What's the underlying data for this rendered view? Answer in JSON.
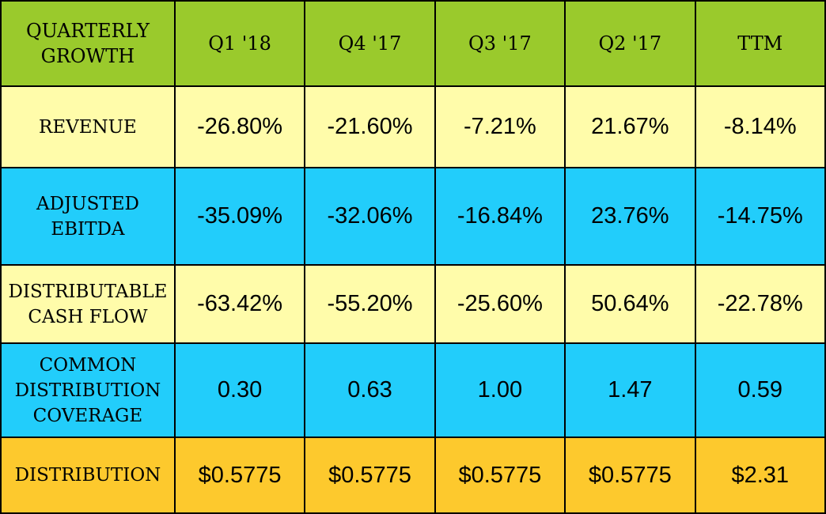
{
  "colors": {
    "header": "#9ACA2C",
    "yellow_row": "#FFFCAA",
    "cyan_row": "#22CDFB",
    "gold_row": "#FDC92D"
  },
  "chart_data": {
    "type": "table",
    "header": [
      "QUARTERLY GROWTH",
      "Q1 '18",
      "Q4 '17",
      "Q3 '17",
      "Q2 '17",
      "TTM"
    ],
    "rows": [
      {
        "label": "REVENUE",
        "values": [
          "-26.80%",
          "-21.60%",
          "-7.21%",
          "21.67%",
          "-8.14%"
        ]
      },
      {
        "label": "ADJUSTED EBITDA",
        "values": [
          "-35.09%",
          "-32.06%",
          "-16.84%",
          "23.76%",
          "-14.75%"
        ]
      },
      {
        "label": "DISTRIBUTABLE CASH FLOW",
        "values": [
          "-63.42%",
          "-55.20%",
          "-25.60%",
          "50.64%",
          "-22.78%"
        ]
      },
      {
        "label": "COMMON DISTRIBUTION COVERAGE",
        "values": [
          "0.30",
          "0.63",
          "1.00",
          "1.47",
          "0.59"
        ]
      },
      {
        "label": "DISTRIBUTION",
        "values": [
          "$0.5775",
          "$0.5775",
          "$0.5775",
          "$0.5775",
          "$2.31"
        ]
      }
    ]
  }
}
